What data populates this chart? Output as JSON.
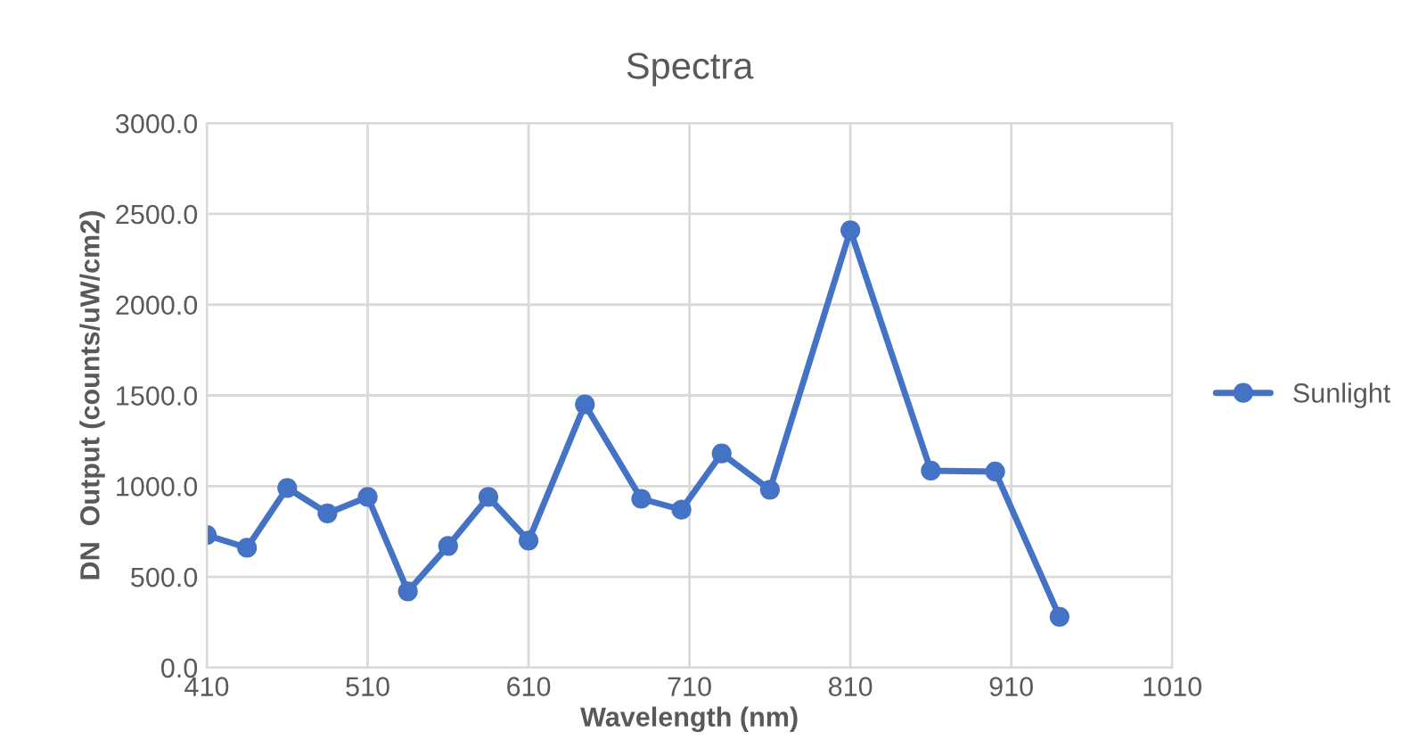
{
  "chart_data": {
    "type": "line",
    "title": "Spectra",
    "xlabel": "Wavelength (nm)",
    "ylabel": "DN  Output (counts/uW/cm2)",
    "series": [
      {
        "name": "Sunlight",
        "color": "#4472c4",
        "x": [
          410,
          435,
          460,
          485,
          510,
          535,
          560,
          585,
          610,
          645,
          680,
          705,
          730,
          760,
          810,
          860,
          900,
          940
        ],
        "values": [
          730,
          660,
          990,
          850,
          940,
          420,
          670,
          940,
          700,
          1450,
          930,
          870,
          1180,
          980,
          2410,
          1085,
          1080,
          280
        ]
      }
    ],
    "xlim": [
      410,
      1010
    ],
    "xticks": [
      410,
      510,
      610,
      710,
      810,
      910,
      1010
    ],
    "ylim": [
      0,
      3000
    ],
    "yticks": [
      {
        "value": 0,
        "label": "0.0"
      },
      {
        "value": 500,
        "label": "500.0"
      },
      {
        "value": 1000,
        "label": "1000.0"
      },
      {
        "value": 1500,
        "label": "1500.0"
      },
      {
        "value": 2000,
        "label": "2000.0"
      },
      {
        "value": 2500,
        "label": "2500.0"
      },
      {
        "value": 3000,
        "label": "3000.0"
      }
    ],
    "grid": true,
    "legend": "right",
    "marker": "circle",
    "line_style": "solid"
  }
}
